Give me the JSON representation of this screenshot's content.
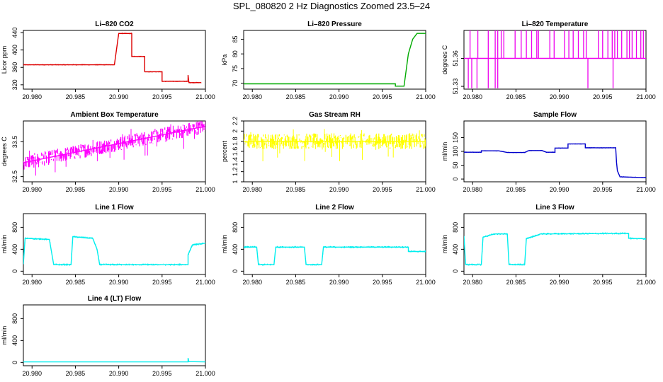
{
  "title": "SPL_080820  2 Hz Diagnostics Zoomed 23.5–24",
  "chart_data": [
    {
      "type": "line",
      "title": "Li–820 CO2",
      "ylabel": "Licor ppm",
      "xlim": [
        20.979,
        21.0
      ],
      "ylim": [
        310,
        445
      ],
      "xticks": [
        "20.980",
        "20.985",
        "20.990",
        "20.995",
        "21.000"
      ],
      "xtick_values": [
        20.98,
        20.985,
        20.99,
        20.995,
        21.0
      ],
      "yticks": [
        320,
        360,
        400,
        440
      ],
      "color": "#dd0000",
      "series": [
        {
          "points": [
            [
              20.979,
              366
            ],
            [
              20.9895,
              366
            ],
            [
              20.99,
              438
            ],
            [
              20.9915,
              438
            ],
            [
              20.9915,
              385
            ],
            [
              20.993,
              385
            ],
            [
              20.993,
              350
            ],
            [
              20.995,
              350
            ],
            [
              20.995,
              328
            ],
            [
              20.998,
              328
            ],
            [
              20.998,
              342
            ],
            [
              20.9981,
              325
            ],
            [
              20.9995,
              325
            ]
          ]
        }
      ]
    },
    {
      "type": "line",
      "title": "Li–820 Pressure",
      "ylabel": "kPa",
      "xlim": [
        20.979,
        21.0
      ],
      "ylim": [
        68,
        88
      ],
      "xticks": [
        "20.980",
        "20.985",
        "20.990",
        "20.995",
        "21.000"
      ],
      "xtick_values": [
        20.98,
        20.985,
        20.99,
        20.995,
        21.0
      ],
      "yticks": [
        70,
        75,
        80,
        85
      ],
      "color": "#00aa00",
      "series": [
        {
          "points": [
            [
              20.979,
              69.8
            ],
            [
              20.9965,
              69.8
            ],
            [
              20.9965,
              69.0
            ],
            [
              20.9975,
              69.0
            ],
            [
              20.998,
              80
            ],
            [
              20.9985,
              85
            ],
            [
              20.999,
              87
            ],
            [
              21.0,
              87
            ]
          ]
        }
      ]
    },
    {
      "type": "line",
      "title": "Li–820 Temperature",
      "ylabel": "degrees C",
      "xlim": [
        20.979,
        21.0
      ],
      "ylim": [
        51.327,
        51.39
      ],
      "xticks": [
        "20.980",
        "20.985",
        "20.990",
        "20.995",
        "21.000"
      ],
      "xtick_values": [
        20.98,
        20.985,
        20.99,
        20.995,
        21.0
      ],
      "yticks": [
        51.33,
        51.36
      ],
      "color": "#ee00ee",
      "series": [
        {
          "points": [
            [
              20.979,
              51.36
            ],
            [
              21.0,
              51.36
            ]
          ]
        }
      ]
    },
    {
      "type": "line",
      "title": "Ambient Box Temperature",
      "ylabel": "degrees C",
      "xlim": [
        20.979,
        21.0
      ],
      "ylim": [
        32.35,
        34.1
      ],
      "xticks": [
        "20.980",
        "20.985",
        "20.990",
        "20.995",
        "21.000"
      ],
      "xtick_values": [
        20.98,
        20.985,
        20.99,
        20.995,
        21.0
      ],
      "yticks": [
        32.5,
        33.5
      ],
      "color": "#ff00ff",
      "series": [
        {
          "points": [
            [
              20.979,
              32.9
            ],
            [
              20.985,
              33.2
            ],
            [
              20.99,
              33.45
            ],
            [
              20.995,
              33.7
            ],
            [
              21.0,
              33.95
            ]
          ]
        }
      ]
    },
    {
      "type": "line",
      "title": "Gas Stream RH",
      "ylabel": "percent",
      "xlim": [
        20.979,
        21.0
      ],
      "ylim": [
        1.0,
        2.2
      ],
      "xticks": [
        "20.980",
        "20.985",
        "20.990",
        "20.995",
        "21.000"
      ],
      "xtick_values": [
        20.98,
        20.985,
        20.99,
        20.995,
        21.0
      ],
      "yticks": [
        1.0,
        1.2,
        1.4,
        1.6,
        1.8,
        2.0,
        2.2
      ],
      "color": "#ffff00",
      "series": [
        {
          "points": [
            [
              20.979,
              1.8
            ],
            [
              21.0,
              1.8
            ]
          ]
        }
      ]
    },
    {
      "type": "line",
      "title": "Sample Flow",
      "ylabel": "ml/min",
      "xlim": [
        20.979,
        21.0
      ],
      "ylim": [
        -10,
        210
      ],
      "xticks": [
        "20.980",
        "20.985",
        "20.990",
        "20.995",
        "21.000"
      ],
      "xtick_values": [
        20.98,
        20.985,
        20.99,
        20.995,
        21.0
      ],
      "yticks": [
        0,
        50,
        100,
        150
      ],
      "color": "#0000cc",
      "series": [
        {
          "points": [
            [
              20.979,
              97
            ],
            [
              20.981,
              97
            ],
            [
              20.981,
              102
            ],
            [
              20.983,
              102
            ],
            [
              20.984,
              96
            ],
            [
              20.986,
              96
            ],
            [
              20.9865,
              103
            ],
            [
              20.988,
              103
            ],
            [
              20.9885,
              97
            ],
            [
              20.9895,
              97
            ],
            [
              20.9895,
              112
            ],
            [
              20.991,
              112
            ],
            [
              20.991,
              127
            ],
            [
              20.993,
              127
            ],
            [
              20.993,
              113
            ],
            [
              20.9965,
              113
            ],
            [
              20.9966,
              60
            ],
            [
              20.9967,
              30
            ],
            [
              20.997,
              8
            ],
            [
              21.0,
              5
            ]
          ]
        }
      ]
    },
    {
      "type": "line",
      "title": "Line 1 Flow",
      "ylabel": "ml/min",
      "xlim": [
        20.979,
        21.0
      ],
      "ylim": [
        -60,
        1050
      ],
      "xticks": [
        "20.980",
        "20.985",
        "20.990",
        "20.995",
        "21.000"
      ],
      "xtick_values": [
        20.98,
        20.985,
        20.99,
        20.995,
        21.0
      ],
      "yticks": [
        0,
        400,
        800
      ],
      "color": "#00eeee",
      "series": [
        {
          "points": [
            [
              20.979,
              130
            ],
            [
              20.9792,
              600
            ],
            [
              20.982,
              580
            ],
            [
              20.9825,
              120
            ],
            [
              20.9845,
              120
            ],
            [
              20.9847,
              630
            ],
            [
              20.987,
              600
            ],
            [
              20.9875,
              400
            ],
            [
              20.9878,
              120
            ],
            [
              20.998,
              120
            ],
            [
              20.998,
              300
            ],
            [
              20.9985,
              480
            ],
            [
              21.0,
              510
            ]
          ]
        }
      ]
    },
    {
      "type": "line",
      "title": "Line 2 Flow",
      "ylabel": "ml/min",
      "xlim": [
        20.979,
        21.0
      ],
      "ylim": [
        -60,
        1050
      ],
      "xticks": [
        "20.980",
        "20.985",
        "20.990",
        "20.995",
        "21.000"
      ],
      "xtick_values": [
        20.98,
        20.985,
        20.99,
        20.995,
        21.0
      ],
      "yticks": [
        0,
        400,
        800
      ],
      "color": "#00eeee",
      "series": [
        {
          "points": [
            [
              20.979,
              440
            ],
            [
              20.9805,
              440
            ],
            [
              20.9807,
              120
            ],
            [
              20.9825,
              120
            ],
            [
              20.9827,
              440
            ],
            [
              20.986,
              440
            ],
            [
              20.9862,
              120
            ],
            [
              20.988,
              120
            ],
            [
              20.9882,
              440
            ],
            [
              20.998,
              440
            ],
            [
              20.998,
              360
            ],
            [
              21.0,
              360
            ]
          ]
        }
      ]
    },
    {
      "type": "line",
      "title": "Line 3 Flow",
      "ylabel": "ml/min",
      "xlim": [
        20.979,
        21.0
      ],
      "ylim": [
        -60,
        1050
      ],
      "xticks": [
        "20.980",
        "20.985",
        "20.990",
        "20.995",
        "21.000"
      ],
      "xtick_values": [
        20.98,
        20.985,
        20.99,
        20.995,
        21.0
      ],
      "yticks": [
        0,
        400,
        800
      ],
      "color": "#00eeee",
      "series": [
        {
          "points": [
            [
              20.979,
              640
            ],
            [
              20.9792,
              120
            ],
            [
              20.981,
              120
            ],
            [
              20.9812,
              620
            ],
            [
              20.9825,
              680
            ],
            [
              20.984,
              680
            ],
            [
              20.9842,
              120
            ],
            [
              20.986,
              120
            ],
            [
              20.9862,
              600
            ],
            [
              20.9872,
              640
            ],
            [
              20.9878,
              680
            ],
            [
              20.998,
              690
            ],
            [
              20.998,
              600
            ],
            [
              21.0,
              590
            ]
          ]
        }
      ]
    },
    {
      "type": "line",
      "title": "Line 4 (LT) Flow",
      "ylabel": "ml/min",
      "xlim": [
        20.979,
        21.0
      ],
      "ylim": [
        -60,
        1050
      ],
      "xticks": [
        "20.980",
        "20.985",
        "20.990",
        "20.995",
        "21.000"
      ],
      "xtick_values": [
        20.98,
        20.985,
        20.99,
        20.995,
        21.0
      ],
      "yticks": [
        0,
        400,
        800
      ],
      "color": "#00eeee",
      "series": [
        {
          "points": [
            [
              20.979,
              10
            ],
            [
              20.998,
              10
            ],
            [
              20.998,
              80
            ],
            [
              20.9981,
              15
            ],
            [
              21.0,
              10
            ]
          ]
        }
      ]
    }
  ]
}
